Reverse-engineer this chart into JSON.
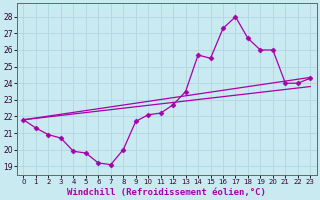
{
  "background_color": "#c8eaf0",
  "grid_color": "#b0d8e0",
  "line_color": "#aa00aa",
  "marker_style": "D",
  "marker_size": 2.5,
  "xlabel": "Windchill (Refroidissement éolien,°C)",
  "xlabel_fontsize": 6.5,
  "yticks": [
    19,
    20,
    21,
    22,
    23,
    24,
    25,
    26,
    27,
    28
  ],
  "xticks": [
    0,
    1,
    2,
    3,
    4,
    5,
    6,
    7,
    8,
    9,
    10,
    11,
    12,
    13,
    14,
    15,
    16,
    17,
    18,
    19,
    20,
    21,
    22,
    23
  ],
  "ylim": [
    18.5,
    28.8
  ],
  "xlim": [
    -0.5,
    23.5
  ],
  "series1_x": [
    0,
    1,
    2,
    3,
    4,
    5,
    6,
    7,
    8,
    9,
    10,
    11,
    12,
    13,
    14,
    15,
    16,
    17,
    18,
    19,
    20,
    21,
    22,
    23
  ],
  "series1_y": [
    21.8,
    21.3,
    20.9,
    20.7,
    19.9,
    19.8,
    19.2,
    19.1,
    20.0,
    21.7,
    22.1,
    22.2,
    22.7,
    23.5,
    25.7,
    25.5,
    27.3,
    28.0,
    26.7,
    26.0,
    26.0,
    24.0,
    24.0,
    24.3
  ],
  "series2_x": [
    0,
    23
  ],
  "series2_y": [
    21.8,
    23.8
  ],
  "series3_x": [
    0,
    23
  ],
  "series3_y": [
    21.8,
    24.35
  ]
}
